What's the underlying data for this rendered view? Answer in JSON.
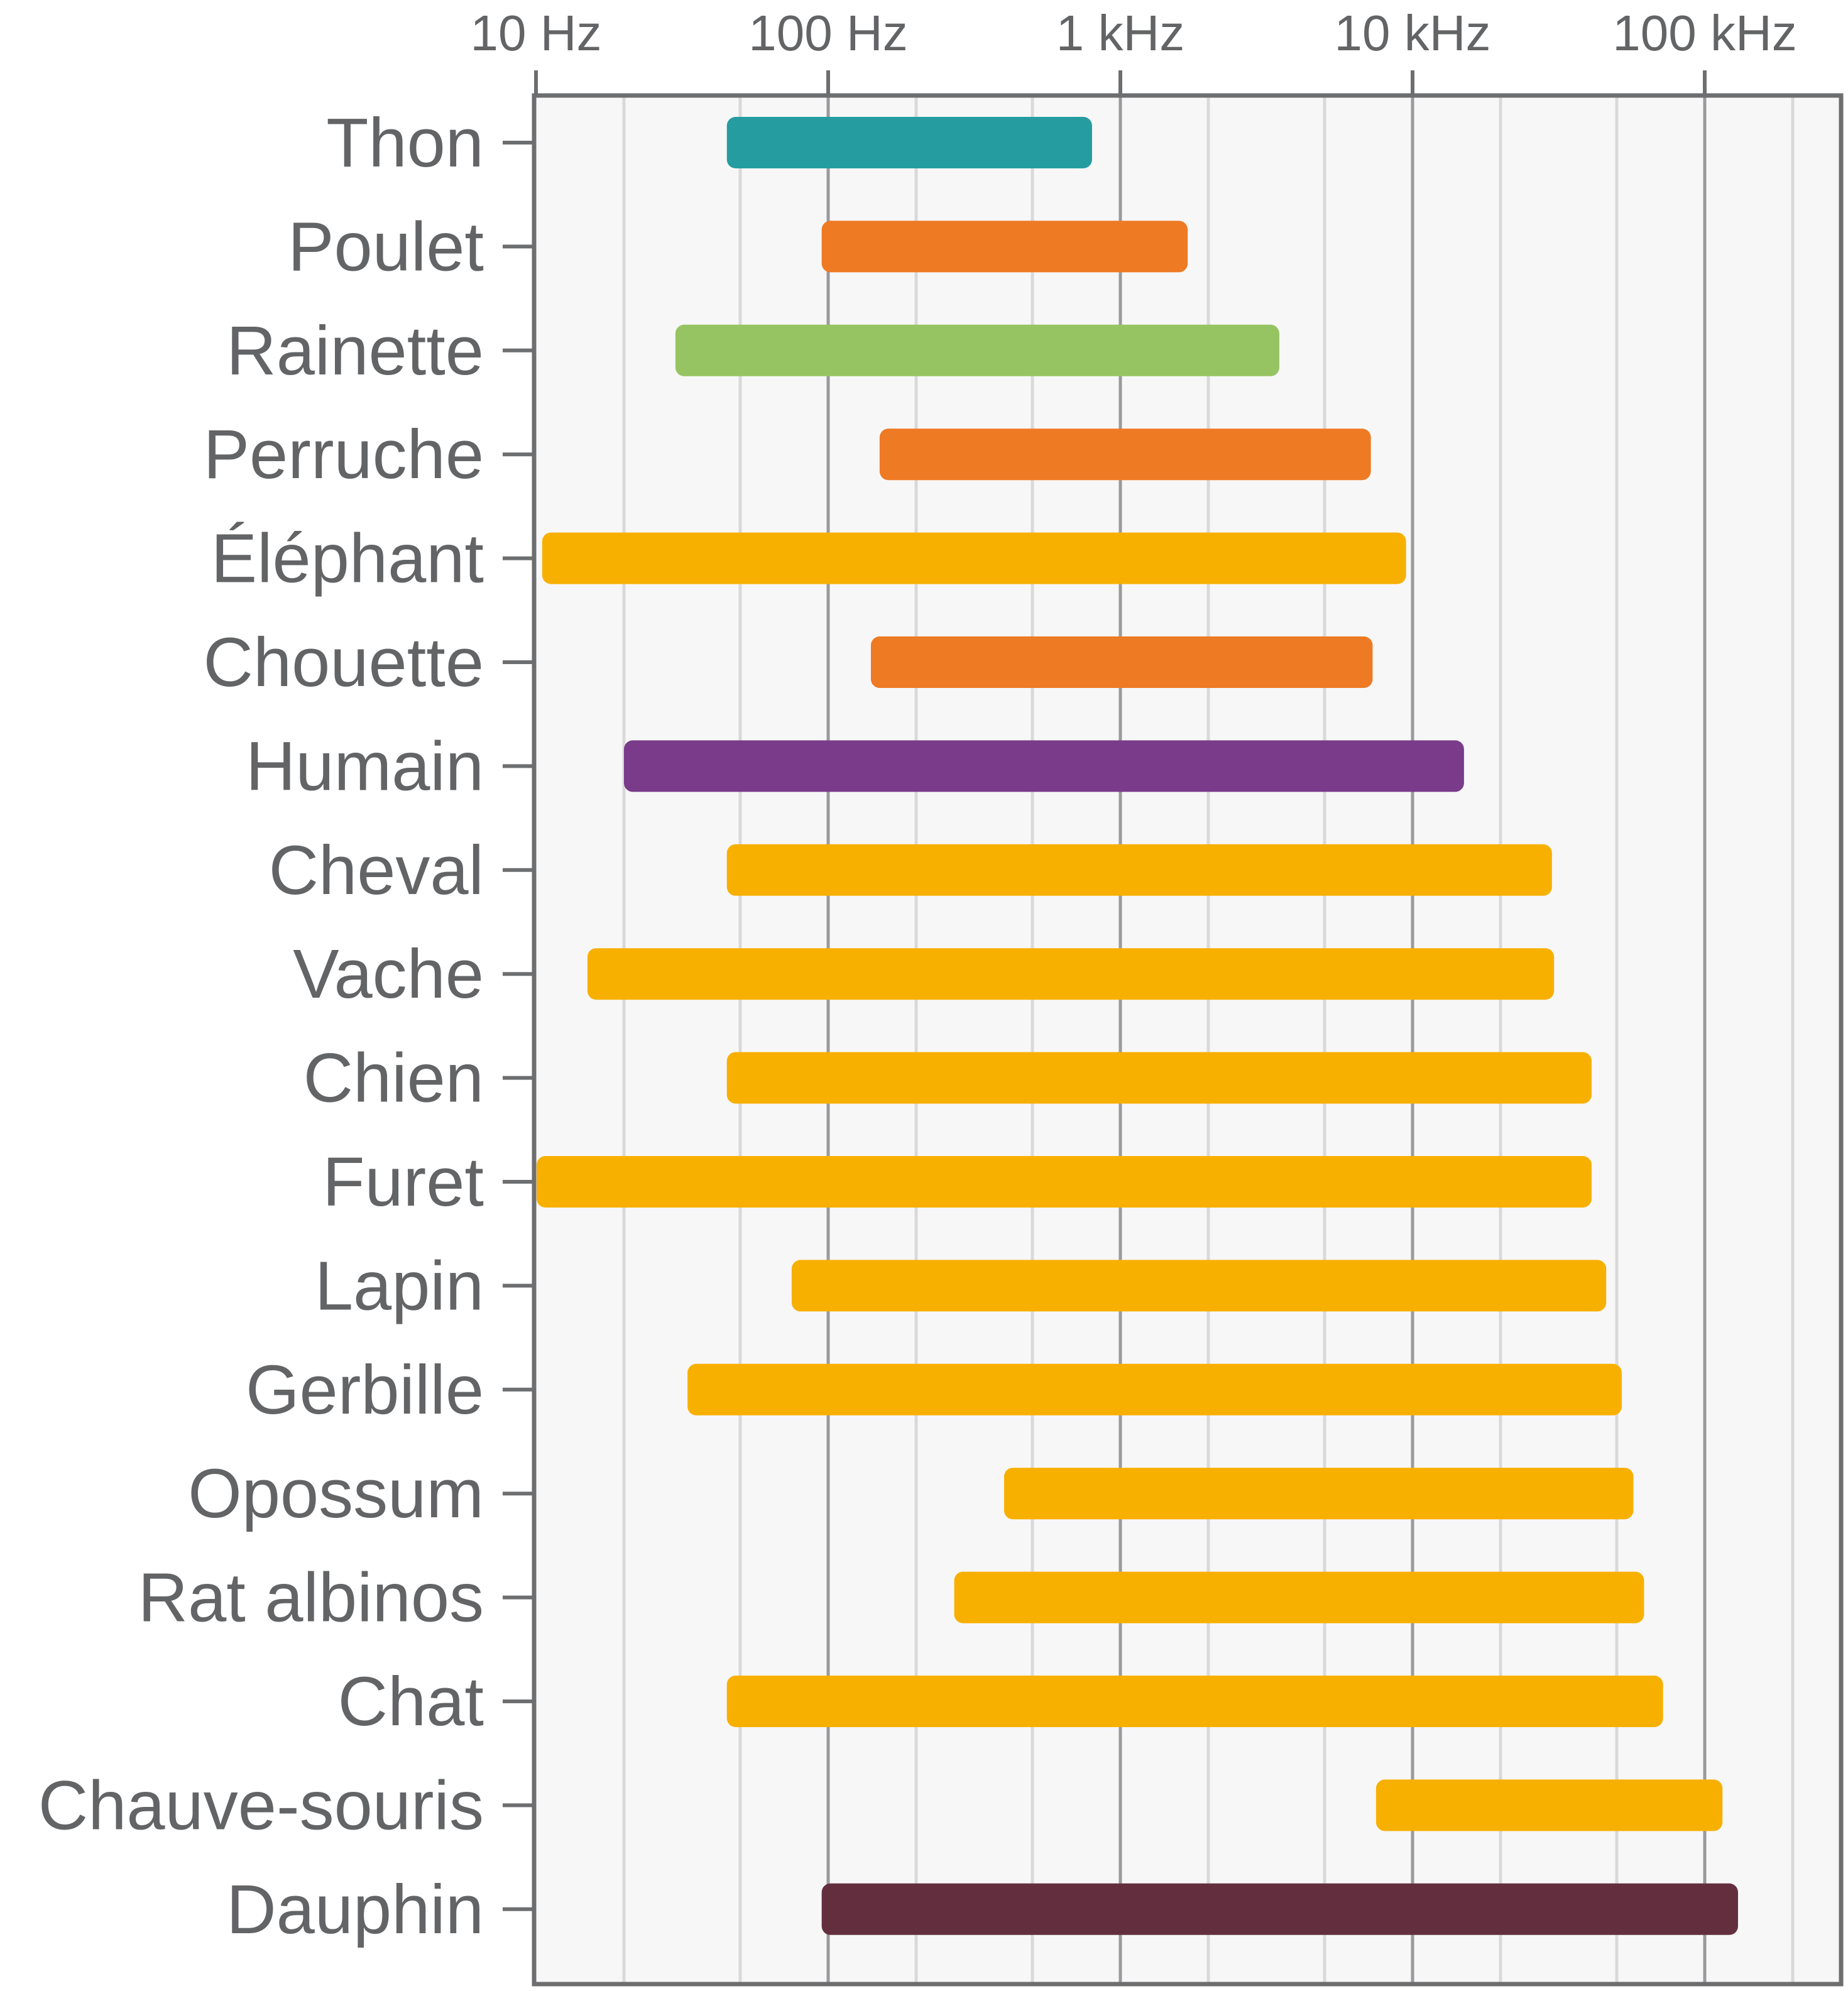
{
  "chart_data": {
    "type": "range-bar",
    "orientation": "horizontal",
    "title": "",
    "xlabel": "",
    "ylabel": "",
    "x_scale": "log",
    "xlim": [
      10,
      200000
    ],
    "x_ticks": [
      {
        "value": 10,
        "label": "10 Hz"
      },
      {
        "value": 100,
        "label": "100 Hz"
      },
      {
        "value": 1000,
        "label": "1 kHz"
      },
      {
        "value": 10000,
        "label": "10 kHz"
      },
      {
        "value": 100000,
        "label": "100 kHz"
      }
    ],
    "grid": true,
    "units": "Hz",
    "series": [
      {
        "name": "Thon",
        "low": 45,
        "high": 800,
        "color": "#259DA0"
      },
      {
        "name": "Poulet",
        "low": 95,
        "high": 1700,
        "color": "#EE7A24"
      },
      {
        "name": "Rainette",
        "low": 30,
        "high": 3500,
        "color": "#97C462"
      },
      {
        "name": "Perruche",
        "low": 150,
        "high": 7200,
        "color": "#EE7A24"
      },
      {
        "name": "Éléphant",
        "low": 10.5,
        "high": 9500,
        "color": "#F7B000"
      },
      {
        "name": "Chouette",
        "low": 140,
        "high": 7300,
        "color": "#EE7A24"
      },
      {
        "name": "Humain",
        "low": 20,
        "high": 15000,
        "color": "#7A3B8A"
      },
      {
        "name": "Cheval",
        "low": 45,
        "high": 30000,
        "color": "#F7B000"
      },
      {
        "name": "Vache",
        "low": 15,
        "high": 30500,
        "color": "#F7B000"
      },
      {
        "name": "Chien",
        "low": 45,
        "high": 41000,
        "color": "#F7B000"
      },
      {
        "name": "Furet",
        "low": 10,
        "high": 41000,
        "color": "#F7B000"
      },
      {
        "name": "Lapin",
        "low": 75,
        "high": 46000,
        "color": "#F7B000"
      },
      {
        "name": "Gerbille",
        "low": 33,
        "high": 52000,
        "color": "#F7B000"
      },
      {
        "name": "Opossum",
        "low": 400,
        "high": 57000,
        "color": "#F7B000"
      },
      {
        "name": "Rat albinos",
        "low": 270,
        "high": 62000,
        "color": "#F7B000"
      },
      {
        "name": "Chat",
        "low": 45,
        "high": 72000,
        "color": "#F7B000"
      },
      {
        "name": "Chauve-souris",
        "low": 7500,
        "high": 115000,
        "color": "#F7B000"
      },
      {
        "name": "Dauphin",
        "low": 95,
        "high": 130000,
        "color": "#632F3E"
      }
    ]
  }
}
